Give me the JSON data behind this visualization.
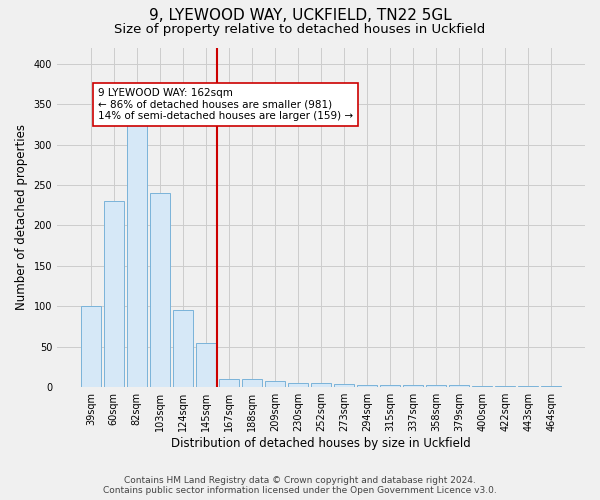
{
  "title": "9, LYEWOOD WAY, UCKFIELD, TN22 5GL",
  "subtitle": "Size of property relative to detached houses in Uckfield",
  "xlabel": "Distribution of detached houses by size in Uckfield",
  "ylabel": "Number of detached properties",
  "footer_line1": "Contains HM Land Registry data © Crown copyright and database right 2024.",
  "footer_line2": "Contains public sector information licensed under the Open Government Licence v3.0.",
  "categories": [
    "39sqm",
    "60sqm",
    "82sqm",
    "103sqm",
    "124sqm",
    "145sqm",
    "167sqm",
    "188sqm",
    "209sqm",
    "230sqm",
    "252sqm",
    "273sqm",
    "294sqm",
    "315sqm",
    "337sqm",
    "358sqm",
    "379sqm",
    "400sqm",
    "422sqm",
    "443sqm",
    "464sqm"
  ],
  "values": [
    100,
    230,
    325,
    240,
    95,
    55,
    10,
    10,
    8,
    5,
    5,
    4,
    3,
    3,
    2,
    2,
    2,
    1,
    1,
    1,
    1
  ],
  "highlight_index": 5,
  "bar_color_normal": "#d6e8f7",
  "bar_edge_color": "#7ab3d9",
  "highlight_line_color": "#cc0000",
  "annotation_box_color": "#ffffff",
  "annotation_box_edge": "#cc0000",
  "annotation_text_line1": "9 LYEWOOD WAY: 162sqm",
  "annotation_text_line2": "← 86% of detached houses are smaller (981)",
  "annotation_text_line3": "14% of semi-detached houses are larger (159) →",
  "ylim": [
    0,
    420
  ],
  "yticks": [
    0,
    50,
    100,
    150,
    200,
    250,
    300,
    350,
    400
  ],
  "background_color": "#f0f0f0",
  "grid_color": "#cccccc",
  "title_fontsize": 11,
  "subtitle_fontsize": 9.5,
  "axis_label_fontsize": 8.5,
  "tick_fontsize": 7,
  "annotation_fontsize": 7.5,
  "footer_fontsize": 6.5
}
